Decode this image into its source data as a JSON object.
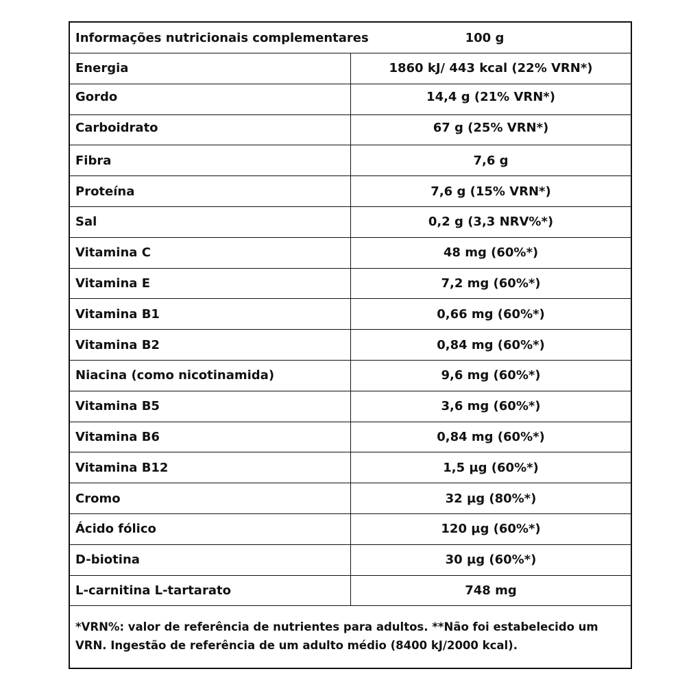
{
  "header": {
    "title": "Informações nutricionais complementares",
    "amount": "100 g"
  },
  "table": {
    "rows": [
      [
        "Energia",
        "1860 kJ/ 443 kcal (22% VRN*)"
      ],
      [
        "Gordo",
        "14,4 g (21% VRN*)"
      ],
      [
        "Carboidrato",
        "67 g (25% VRN*)"
      ],
      [
        "Fibra",
        "7,6 g"
      ],
      [
        "Proteína",
        "7,6 g (15% VRN*)"
      ],
      [
        "Sal",
        "0,2 g (3,3 NRV%*)"
      ],
      [
        "Vitamina C",
        "48 mg (60%*)"
      ],
      [
        "Vitamina E",
        "7,2 mg (60%*)"
      ],
      [
        "Vitamina B1",
        "0,66 mg (60%*)"
      ],
      [
        "Vitamina B2",
        "0,84 mg (60%*)"
      ],
      [
        "Niacina (como nicotinamida)",
        "9,6 mg (60%*)"
      ],
      [
        "Vitamina B5",
        "3,6 mg (60%*)"
      ],
      [
        "Vitamina B6",
        "0,84 mg (60%*)"
      ],
      [
        "Vitamina B12",
        "1,5 µg (60%*)"
      ],
      [
        "Cromo",
        "32 µg (80%*)"
      ],
      [
        "Ácido fólico",
        "120 µg (60%*)"
      ],
      [
        "D-biotina",
        "30 µg (60%*)"
      ],
      [
        "L-carnitina L-tartarato",
        "748 mg"
      ]
    ]
  },
  "footnote": "*VRN%: valor de referência de nutrientes para adultos. **Não foi estabelecido um VRN. Ingestão de referência de um adulto médio (8400 kJ/2000 kcal)."
}
